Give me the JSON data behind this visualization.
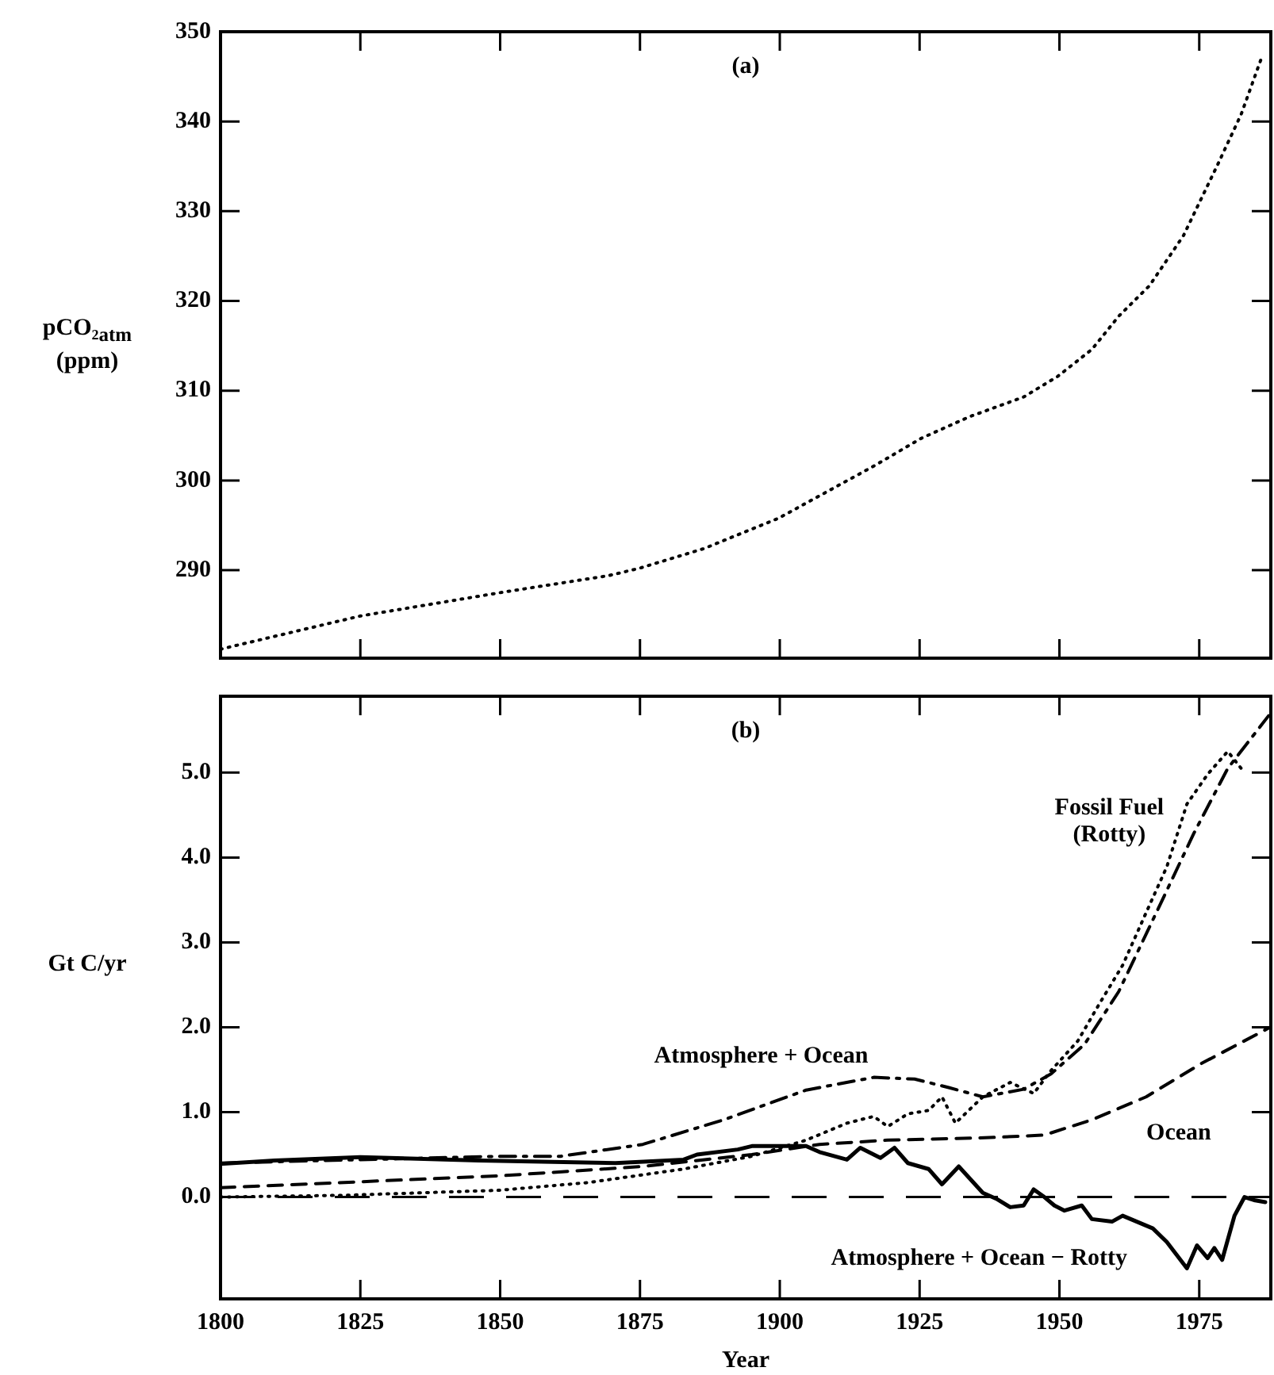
{
  "chart_data": [
    {
      "type": "line",
      "title": "(a)",
      "ylabel": "pCO₂$_{atm}$ (ppm)",
      "line_style": "dotted",
      "marker": "none",
      "grid": false,
      "legend": false,
      "tick_labels": "y",
      "xlim": [
        1800,
        1987.8
      ],
      "xticks": [
        {
          "value": 1800,
          "label": null
        },
        {
          "value": 1825,
          "label": null
        },
        {
          "value": 1850,
          "label": null
        },
        {
          "value": 1875,
          "label": null
        },
        {
          "value": 1900,
          "label": null
        },
        {
          "value": 1925,
          "label": null
        },
        {
          "value": 1950,
          "label": null
        },
        {
          "value": 1975,
          "label": null
        }
      ],
      "ylim": [
        280.2,
        350
      ],
      "yticks": [
        290,
        300,
        310,
        320,
        330,
        340,
        350
      ],
      "series": [
        {
          "color": "#000000",
          "x": [
            1800,
            1825,
            1850,
            1869.4,
            1874.8,
            1886.4,
            1899.8,
            1916.8,
            1925.3,
            1933.9,
            1943.6,
            1949.7,
            1955.8,
            1960.6,
            1966.1,
            1972.2,
            1978.3,
            1982.5,
            1986.2
          ],
          "values": [
            281.2,
            284.9,
            287.5,
            289.4,
            290.2,
            292.4,
            295.8,
            301.6,
            304.7,
            307.1,
            309.3,
            311.6,
            314.6,
            318.3,
            321.7,
            327.3,
            335.2,
            340.8,
            347.2
          ]
        }
      ]
    },
    {
      "type": "line",
      "title": "(b)",
      "xlabel": "Year",
      "ylabel": "Gt C/yr",
      "marker": "none",
      "grid": false,
      "legend": false,
      "xlim": [
        1800,
        1987.8
      ],
      "xticks": [
        1800,
        1825,
        1850,
        1875,
        1900,
        1925,
        1950,
        1975
      ],
      "ylim": [
        -1.2,
        5.9
      ],
      "yticks": [
        {
          "value": 0,
          "label": "0.0"
        },
        {
          "value": 1,
          "label": "1.0"
        },
        {
          "value": 2,
          "label": "2.0"
        },
        {
          "value": 3,
          "label": "3.0"
        },
        {
          "value": 4,
          "label": "4.0"
        },
        {
          "value": 5,
          "label": "5.0"
        }
      ],
      "ref_lines": [
        {
          "axis": "y",
          "value": 0,
          "color": "#000000",
          "line_style": "dashed"
        }
      ],
      "series": [
        {
          "name": "Fossil Fuel (Rotty)",
          "color": "#000000",
          "line_style": "dotted",
          "x": [
            1800,
            1821.9,
            1850,
            1865.7,
            1882.8,
            1895,
            1904.7,
            1912,
            1916.8,
            1919.3,
            1922.9,
            1926.6,
            1929,
            1931.4,
            1936.3,
            1941.2,
            1945.4,
            1948.5,
            1953.3,
            1957,
            1961.3,
            1965.5,
            1969.2,
            1972.8,
            1976.5,
            1980.1,
            1982.5
          ],
          "values": [
            0.0,
            0.02,
            0.08,
            0.17,
            0.33,
            0.48,
            0.67,
            0.87,
            0.95,
            0.83,
            0.98,
            1.02,
            1.18,
            0.87,
            1.18,
            1.35,
            1.22,
            1.49,
            1.84,
            2.26,
            2.73,
            3.35,
            3.89,
            4.63,
            4.98,
            5.25,
            5.05
          ]
        },
        {
          "name": "Atmosphere + Ocean",
          "color": "#000000",
          "line_style": "dashdot",
          "x": [
            1800,
            1850,
            1860.8,
            1875.5,
            1890,
            1904.7,
            1916.8,
            1924.1,
            1930.2,
            1936.3,
            1943.6,
            1948.5,
            1954.5,
            1960.6,
            1967.9,
            1974,
            1980.1,
            1987.4
          ],
          "values": [
            0.4,
            0.48,
            0.48,
            0.62,
            0.91,
            1.26,
            1.41,
            1.39,
            1.29,
            1.18,
            1.27,
            1.45,
            1.8,
            2.42,
            3.43,
            4.28,
            5.05,
            5.67
          ]
        },
        {
          "name": "Ocean",
          "color": "#000000",
          "line_style": "dashed",
          "x": [
            1800,
            1850,
            1875.5,
            1895,
            1907.1,
            1919.3,
            1937.5,
            1947.3,
            1955.8,
            1965.5,
            1975.3,
            1987.4
          ],
          "values": [
            0.11,
            0.25,
            0.36,
            0.5,
            0.62,
            0.67,
            0.7,
            0.73,
            0.91,
            1.18,
            1.57,
            1.99
          ]
        },
        {
          "name": "Atmosphere + Ocean − Rotty",
          "color": "#000000",
          "line_style": "solid",
          "x": [
            1800,
            1809.7,
            1825,
            1846.2,
            1870.6,
            1882.8,
            1885.2,
            1892.5,
            1895,
            1904.7,
            1907.1,
            1912,
            1914.4,
            1918,
            1920.5,
            1922.9,
            1926.6,
            1929,
            1932,
            1936.3,
            1938.7,
            1941.2,
            1943.6,
            1945.4,
            1947.3,
            1949.1,
            1950.9,
            1954,
            1955.8,
            1959.4,
            1961.3,
            1966.7,
            1969.2,
            1972.8,
            1974.6,
            1976.5,
            1977.7,
            1979.1,
            1981.3,
            1983.1,
            1985,
            1986.8
          ],
          "values": [
            0.39,
            0.43,
            0.47,
            0.43,
            0.4,
            0.44,
            0.5,
            0.56,
            0.6,
            0.6,
            0.53,
            0.44,
            0.58,
            0.46,
            0.58,
            0.4,
            0.33,
            0.15,
            0.36,
            0.05,
            -0.02,
            -0.12,
            -0.1,
            0.09,
            0.0,
            -0.1,
            -0.16,
            -0.1,
            -0.26,
            -0.29,
            -0.22,
            -0.37,
            -0.53,
            -0.84,
            -0.57,
            -0.72,
            -0.6,
            -0.74,
            -0.22,
            0.0,
            -0.04,
            -0.06
          ]
        }
      ]
    }
  ]
}
